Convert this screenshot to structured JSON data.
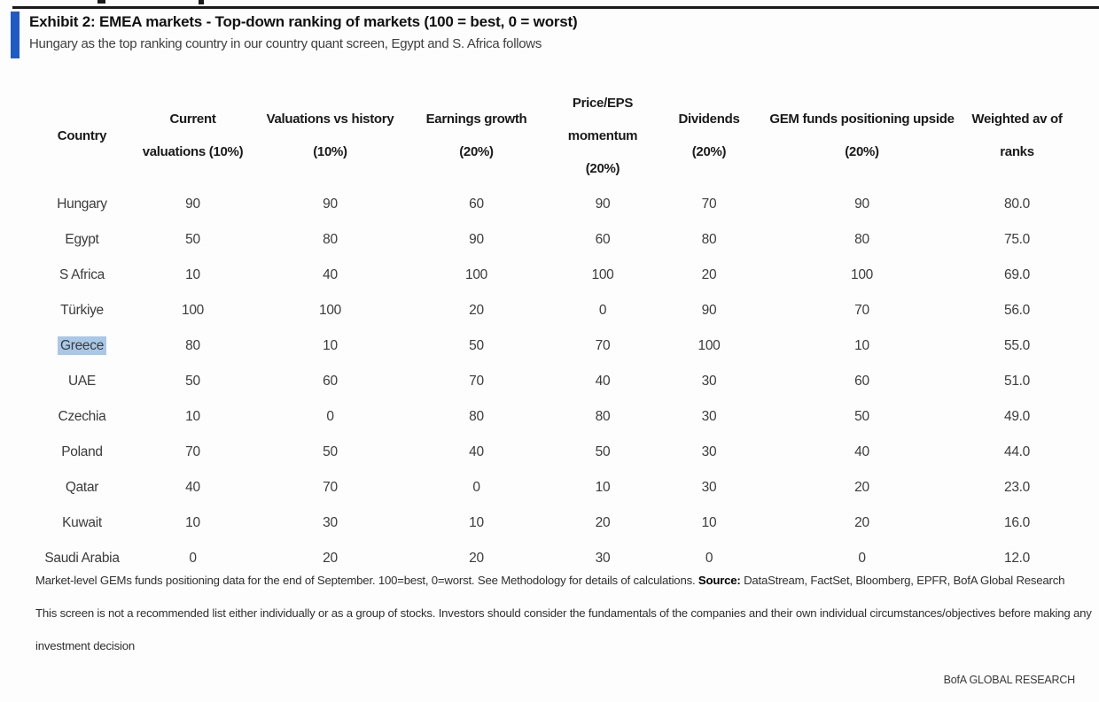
{
  "colors": {
    "accent": "#1f5bc4",
    "selection": "#a9c8e8"
  },
  "header": {
    "title": "Exhibit 2: EMEA markets - Top-down ranking of markets (100 = best, 0 = worst)",
    "subtitle": "Hungary as the top ranking country in our country quant screen, Egypt and S. Africa follows"
  },
  "table": {
    "columns": [
      {
        "id": "country",
        "lines": [
          "Country"
        ]
      },
      {
        "id": "current-valuations",
        "lines": [
          "Current",
          "valuations (10%)"
        ]
      },
      {
        "id": "valuations-vs-history",
        "lines": [
          "Valuations vs history",
          "(10%)"
        ]
      },
      {
        "id": "earnings-growth",
        "lines": [
          "Earnings growth",
          "(20%)"
        ]
      },
      {
        "id": "price-eps-momentum",
        "lines": [
          "Price/EPS",
          "momentum",
          "(20%)"
        ]
      },
      {
        "id": "dividends",
        "lines": [
          "Dividends",
          "(20%)"
        ]
      },
      {
        "id": "gem-funds-positioning-upside",
        "lines": [
          "GEM funds positioning upside",
          "(20%)"
        ]
      },
      {
        "id": "weighted-av-of-ranks",
        "lines": [
          "Weighted av of",
          "ranks"
        ]
      }
    ],
    "rows": [
      {
        "country": "Hungary",
        "highlighted": false,
        "scores": [
          90,
          90,
          60,
          90,
          70,
          90
        ],
        "weighted_avg": "80.0"
      },
      {
        "country": "Egypt",
        "highlighted": false,
        "scores": [
          50,
          80,
          90,
          60,
          80,
          80
        ],
        "weighted_avg": "75.0"
      },
      {
        "country": "S Africa",
        "highlighted": false,
        "scores": [
          10,
          40,
          100,
          100,
          20,
          100
        ],
        "weighted_avg": "69.0"
      },
      {
        "country": "Türkiye",
        "highlighted": false,
        "scores": [
          100,
          100,
          20,
          0,
          90,
          70
        ],
        "weighted_avg": "56.0"
      },
      {
        "country": "Greece",
        "highlighted": true,
        "scores": [
          80,
          10,
          50,
          70,
          100,
          10
        ],
        "weighted_avg": "55.0"
      },
      {
        "country": "UAE",
        "highlighted": false,
        "scores": [
          50,
          60,
          70,
          40,
          30,
          60
        ],
        "weighted_avg": "51.0"
      },
      {
        "country": "Czechia",
        "highlighted": false,
        "scores": [
          10,
          0,
          80,
          80,
          30,
          50
        ],
        "weighted_avg": "49.0"
      },
      {
        "country": "Poland",
        "highlighted": false,
        "scores": [
          70,
          50,
          40,
          50,
          30,
          40
        ],
        "weighted_avg": "44.0"
      },
      {
        "country": "Qatar",
        "highlighted": false,
        "scores": [
          40,
          70,
          0,
          10,
          30,
          20
        ],
        "weighted_avg": "23.0"
      },
      {
        "country": "Kuwait",
        "highlighted": false,
        "scores": [
          10,
          30,
          10,
          20,
          10,
          20
        ],
        "weighted_avg": "16.0"
      },
      {
        "country": "Saudi Arabia",
        "highlighted": false,
        "scores": [
          0,
          20,
          20,
          30,
          0,
          0
        ],
        "weighted_avg": "12.0"
      }
    ]
  },
  "chart_data": {
    "type": "table",
    "title": "Exhibit 2: EMEA markets - Top-down ranking of markets (100 = best, 0 = worst)",
    "categories": [
      "Hungary",
      "Egypt",
      "S Africa",
      "Türkiye",
      "Greece",
      "UAE",
      "Czechia",
      "Poland",
      "Qatar",
      "Kuwait",
      "Saudi Arabia"
    ],
    "series": [
      {
        "name": "Current valuations (10%)",
        "values": [
          90,
          50,
          10,
          100,
          80,
          50,
          10,
          70,
          40,
          10,
          0
        ]
      },
      {
        "name": "Valuations vs history (10%)",
        "values": [
          90,
          80,
          40,
          100,
          10,
          60,
          0,
          50,
          70,
          30,
          20
        ]
      },
      {
        "name": "Earnings growth (20%)",
        "values": [
          60,
          90,
          100,
          20,
          50,
          70,
          80,
          40,
          0,
          10,
          20
        ]
      },
      {
        "name": "Price/EPS momentum (20%)",
        "values": [
          90,
          60,
          100,
          0,
          70,
          40,
          80,
          50,
          10,
          20,
          30
        ]
      },
      {
        "name": "Dividends (20%)",
        "values": [
          70,
          80,
          20,
          90,
          100,
          30,
          30,
          30,
          30,
          10,
          0
        ]
      },
      {
        "name": "GEM funds positioning upside (20%)",
        "values": [
          90,
          80,
          100,
          70,
          10,
          60,
          50,
          40,
          20,
          20,
          0
        ]
      },
      {
        "name": "Weighted av of ranks",
        "values": [
          80.0,
          75.0,
          69.0,
          56.0,
          55.0,
          51.0,
          49.0,
          44.0,
          23.0,
          16.0,
          12.0
        ]
      }
    ]
  },
  "footnotes": {
    "methodology": {
      "text": "Market-level GEMs funds positioning data for the end of September. 100=best, 0=worst. See Methodology for details of calculations. ",
      "source_label": "Source:",
      "sources": " DataStream, FactSet, Bloomberg, EPFR, BofA Global Research"
    },
    "disclaimer_line1": "This screen is not a recommended list either individually or as a group of stocks. Investors should consider the fundamentals of the companies and their own individual circumstances/objectives before making any",
    "disclaimer_line2": "investment decision"
  },
  "footer": {
    "brand": "BofA GLOBAL RESEARCH"
  }
}
